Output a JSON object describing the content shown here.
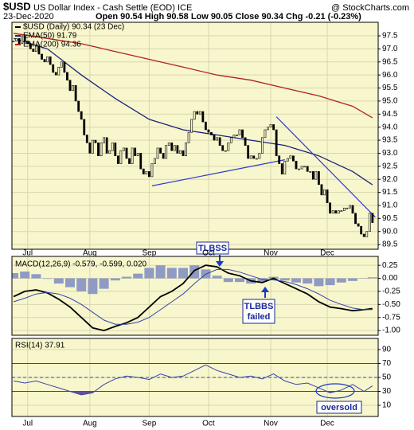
{
  "header": {
    "symbol": "$USD",
    "name": "US Dollar Index - Cash Settle (EOD) ICE",
    "source": "@ StockCharts.com",
    "date": "23-Dec-2020",
    "quote": "Open 90.54 High 90.58 Low 90.05 Close 90.34 Chg -0.21 (-0.23%)"
  },
  "chart_data": [
    {
      "type": "candlestick",
      "categories": [
        null,
        null,
        null,
        null,
        null,
        "Jul",
        null,
        null,
        null,
        null,
        null,
        null,
        null,
        null,
        null,
        null,
        null,
        null,
        null,
        null,
        null,
        null,
        null,
        null,
        null,
        null,
        null,
        "Aug",
        null,
        null,
        null,
        null,
        null,
        null,
        null,
        null,
        null,
        null,
        null,
        null,
        null,
        null,
        null,
        null,
        null,
        null,
        null,
        null,
        "Sep",
        null,
        null,
        null,
        null,
        null,
        null,
        null,
        null,
        null,
        null,
        null,
        null,
        null,
        null,
        null,
        null,
        null,
        null,
        null,
        null,
        "Oct",
        null,
        null,
        null,
        null,
        null,
        null,
        null,
        null,
        null,
        null,
        null,
        null,
        null,
        null,
        null,
        null,
        null,
        null,
        null,
        null,
        null,
        "Nov",
        null,
        null,
        null,
        null,
        null,
        null,
        null,
        null,
        null,
        null,
        null,
        null,
        null,
        null,
        null,
        null,
        null,
        null,
        null,
        "Dec",
        null,
        null,
        null,
        null,
        null,
        null,
        null,
        null,
        null,
        null,
        null,
        null,
        null,
        null,
        null,
        null
      ],
      "series": [
        {
          "name": "$USD (Daily) 90.34 (23 Dec)",
          "color": "#000000",
          "values": [
            97.3,
            97.4,
            97.2,
            97.5,
            97.3,
            97.2,
            97.0,
            96.9,
            97.1,
            96.8,
            96.6,
            96.5,
            96.7,
            96.4,
            96.1,
            96.0,
            96.3,
            96.5,
            96.1,
            95.8,
            95.4,
            95.6,
            95.0,
            94.6,
            94.3,
            93.7,
            93.4,
            93.0,
            93.5,
            93.4,
            92.9,
            93.4,
            93.6,
            93.0,
            93.1,
            93.4,
            92.9,
            92.6,
            93.1,
            93.2,
            92.8,
            92.6,
            93.2,
            92.9,
            93.0,
            92.4,
            92.2,
            92.3,
            92.1,
            92.6,
            92.8,
            93.2,
            93.0,
            92.8,
            93.3,
            93.4,
            93.1,
            93.3,
            93.0,
            93.1,
            92.9,
            93.4,
            93.8,
            94.3,
            94.6,
            94.5,
            94.6,
            94.2,
            93.9,
            93.8,
            93.7,
            93.5,
            93.6,
            93.3,
            93.1,
            93.1,
            93.4,
            93.6,
            93.7,
            93.7,
            93.9,
            93.6,
            93.3,
            92.8,
            92.9,
            92.8,
            92.8,
            93.0,
            93.6,
            93.9,
            94.0,
            94.1,
            93.9,
            92.9,
            92.6,
            92.2,
            92.7,
            92.8,
            92.9,
            92.7,
            92.4,
            92.4,
            92.5,
            92.5,
            92.3,
            92.3,
            92.0,
            92.3,
            91.8,
            91.4,
            91.6,
            91.1,
            90.7,
            90.8,
            90.7,
            90.8,
            90.8,
            90.9,
            90.9,
            91.0,
            90.7,
            90.3,
            90.2,
            89.9,
            89.8,
            90.0,
            90.7,
            90.34
          ]
        }
      ],
      "overlays": [
        {
          "name": "EMA(50) 91.79",
          "color": "#1a237e",
          "x": [
            0,
            12,
            24,
            36,
            48,
            60,
            72,
            84,
            96,
            108,
            120,
            127
          ],
          "values": [
            97.4,
            97.0,
            96.0,
            95.1,
            94.3,
            93.9,
            93.7,
            93.5,
            93.3,
            92.9,
            92.3,
            91.79
          ]
        },
        {
          "name": "EMA(200) 94.36",
          "color": "#b22222",
          "x": [
            0,
            12,
            24,
            36,
            48,
            60,
            72,
            84,
            96,
            108,
            120,
            127
          ],
          "values": [
            97.6,
            97.4,
            97.2,
            96.9,
            96.6,
            96.3,
            96.0,
            95.8,
            95.5,
            95.2,
            94.8,
            94.36
          ]
        }
      ],
      "trendlines": [
        {
          "color": "#2b3bd6",
          "x": [
            49,
            96
          ],
          "values": [
            91.75,
            92.75
          ]
        },
        {
          "color": "#2b3bd6",
          "x": [
            93,
            128
          ],
          "values": [
            94.4,
            90.55
          ]
        }
      ],
      "ylim": [
        89.32,
        98.02
      ],
      "yticks": [
        97.5,
        {
          "value": 97,
          "label": "97.0"
        },
        96.5,
        {
          "value": 96,
          "label": "96.0"
        },
        95.5,
        {
          "value": 95,
          "label": "95.0"
        },
        94.5,
        {
          "value": 94,
          "label": "94.0"
        },
        93.5,
        {
          "value": 93,
          "label": "93.0"
        },
        92.5,
        {
          "value": 92,
          "label": "92.0"
        },
        91.5,
        {
          "value": 91,
          "label": "91.0"
        },
        90.5,
        {
          "value": 90,
          "label": "90.0"
        },
        89.5
      ],
      "grid": true
    },
    {
      "type": "macd",
      "label": "MACD(12,26,9) -0.579, -0.599, 0.020",
      "x": [
        0,
        4,
        8,
        12,
        16,
        20,
        24,
        28,
        32,
        36,
        40,
        44,
        48,
        52,
        56,
        60,
        64,
        68,
        72,
        76,
        80,
        84,
        88,
        92,
        96,
        100,
        104,
        108,
        112,
        116,
        120,
        124,
        127
      ],
      "series": [
        {
          "color": "#000000",
          "values": [
            -0.35,
            -0.25,
            -0.22,
            -0.28,
            -0.4,
            -0.55,
            -0.75,
            -0.95,
            -1.0,
            -0.92,
            -0.85,
            -0.75,
            -0.55,
            -0.35,
            -0.25,
            -0.1,
            0.15,
            0.25,
            0.22,
            0.1,
            0.05,
            -0.05,
            -0.08,
            0.0,
            -0.1,
            -0.2,
            -0.3,
            -0.45,
            -0.55,
            -0.58,
            -0.62,
            -0.6,
            -0.579
          ]
        },
        {
          "color": "#3344aa",
          "values": [
            -0.45,
            -0.38,
            -0.3,
            -0.27,
            -0.3,
            -0.38,
            -0.5,
            -0.65,
            -0.8,
            -0.88,
            -0.88,
            -0.84,
            -0.75,
            -0.6,
            -0.45,
            -0.3,
            -0.1,
            0.08,
            0.17,
            0.17,
            0.12,
            0.05,
            -0.02,
            -0.03,
            -0.06,
            -0.12,
            -0.2,
            -0.3,
            -0.42,
            -0.5,
            -0.57,
            -0.6,
            -0.599
          ]
        }
      ],
      "histogram": {
        "color": "#8f9bc4",
        "values": [
          0.1,
          0.13,
          0.08,
          -0.01,
          -0.1,
          -0.17,
          -0.25,
          -0.3,
          -0.2,
          -0.04,
          0.03,
          0.09,
          0.2,
          0.25,
          0.2,
          0.2,
          0.25,
          0.17,
          0.05,
          -0.07,
          -0.07,
          -0.1,
          -0.06,
          0.03,
          -0.04,
          -0.08,
          -0.1,
          -0.15,
          -0.13,
          -0.08,
          -0.05,
          0.0,
          0.02
        ]
      },
      "ylim": [
        -1.09,
        0.42
      ],
      "yticks": [
        0.25,
        {
          "value": 0,
          "label": "0.00"
        },
        -0.25,
        {
          "value": -0.5,
          "label": "-0.50"
        },
        -0.75,
        {
          "value": -1,
          "label": "-1.00"
        }
      ],
      "grid": true,
      "annotations": [
        {
          "lines": [
            "TLBSS"
          ]
        },
        {
          "lines": [
            "TLBBS",
            "failed"
          ]
        }
      ]
    },
    {
      "type": "line",
      "label": "RSI(14) 37.91",
      "x": [
        0,
        4,
        8,
        12,
        16,
        20,
        24,
        28,
        32,
        36,
        40,
        44,
        48,
        52,
        56,
        60,
        64,
        68,
        72,
        76,
        80,
        84,
        88,
        92,
        96,
        100,
        104,
        108,
        112,
        116,
        120,
        124,
        127
      ],
      "series": [
        {
          "color": "#3344aa",
          "values": [
            45,
            42,
            45,
            40,
            35,
            30,
            25,
            28,
            40,
            48,
            52,
            50,
            47,
            55,
            50,
            52,
            60,
            68,
            60,
            55,
            50,
            52,
            48,
            55,
            45,
            40,
            42,
            35,
            28,
            32,
            40,
            30,
            37.91
          ]
        }
      ],
      "fill_below": 30,
      "fill_color": "#6a4fa0",
      "reference_lines": [
        70,
        50,
        30
      ],
      "ylim": [
        -6,
        106
      ],
      "yticks": [
        90,
        70,
        50,
        30,
        10
      ],
      "grid": true,
      "annotations": [
        {
          "lines": [
            "oversold"
          ]
        }
      ]
    }
  ]
}
